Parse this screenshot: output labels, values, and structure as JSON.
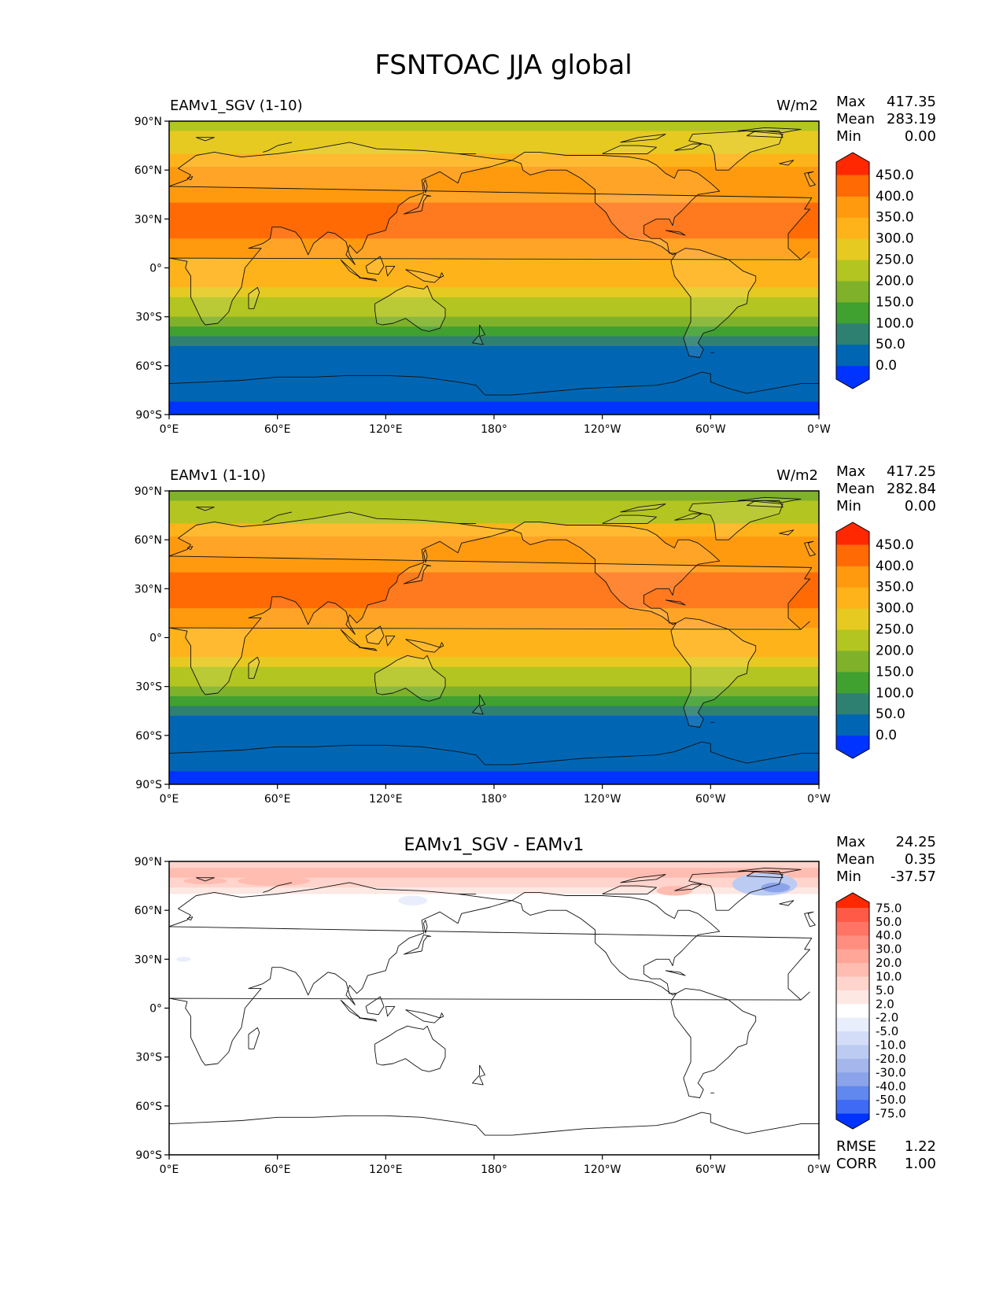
{
  "figure_title": "FSNTOAC JJA global",
  "colors": {
    "abs_levels": [
      "#0033ff",
      "#0066b3",
      "#2e8070",
      "#40a030",
      "#7fb22a",
      "#b3c520",
      "#e6ca22",
      "#ffb31a",
      "#ff9a0f",
      "#ff6a05",
      "#ff2800"
    ],
    "diff_levels": [
      "#0033ff",
      "#3e6af5",
      "#6088ee",
      "#8aa3ea",
      "#a4b6ec",
      "#bccbf2",
      "#d3ddf7",
      "#e8eefb",
      "#ffffff",
      "#fde8e4",
      "#ffd4cc",
      "#ffbcb0",
      "#ffa698",
      "#ff8e80",
      "#ff7464",
      "#ff5a48",
      "#ff2800"
    ]
  },
  "chart_data": [
    {
      "type": "heatmap",
      "name": "test",
      "title_left": "EAMv1_SGV (1-10)",
      "title_right": "W/m2",
      "xlabel": "",
      "ylabel": "",
      "xlim": [
        0,
        360
      ],
      "ylim": [
        -90,
        90
      ],
      "xticks": [
        "0°E",
        "60°E",
        "120°E",
        "180°",
        "120°W",
        "60°W",
        "0°W"
      ],
      "yticks": [
        "90°N",
        "60°N",
        "30°N",
        "0°",
        "30°S",
        "60°S",
        "90°S"
      ],
      "stats": [
        {
          "label": "Max",
          "value": "417.35"
        },
        {
          "label": "Mean",
          "value": "283.19"
        },
        {
          "label": "Min",
          "value": "0.00"
        }
      ],
      "colorbar_levels": [
        "450.0",
        "400.0",
        "350.0",
        "300.0",
        "250.0",
        "200.0",
        "150.0",
        "100.0",
        "50.0",
        "0.0"
      ],
      "zonal_bands_lat_start_to_end_level": [
        [
          90,
          84,
          5
        ],
        [
          84,
          70,
          6
        ],
        [
          70,
          62,
          7
        ],
        [
          62,
          50,
          8
        ],
        [
          50,
          40,
          8
        ],
        [
          40,
          18,
          9
        ],
        [
          18,
          6,
          8
        ],
        [
          6,
          -6,
          7
        ],
        [
          -6,
          -12,
          7
        ],
        [
          -12,
          -18,
          6
        ],
        [
          -18,
          -24,
          5
        ],
        [
          -24,
          -30,
          5
        ],
        [
          -30,
          -36,
          4
        ],
        [
          -36,
          -42,
          3
        ],
        [
          -42,
          -48,
          2
        ],
        [
          -48,
          -54,
          1
        ],
        [
          -54,
          -82,
          1
        ],
        [
          -82,
          -90,
          0
        ]
      ]
    },
    {
      "type": "heatmap",
      "name": "reference",
      "title_left": "EAMv1 (1-10)",
      "title_right": "W/m2",
      "xlabel": "",
      "ylabel": "",
      "xlim": [
        0,
        360
      ],
      "ylim": [
        -90,
        90
      ],
      "xticks": [
        "0°E",
        "60°E",
        "120°E",
        "180°",
        "120°W",
        "60°W",
        "0°W"
      ],
      "yticks": [
        "90°N",
        "60°N",
        "30°N",
        "0°",
        "30°S",
        "60°S",
        "90°S"
      ],
      "stats": [
        {
          "label": "Max",
          "value": "417.25"
        },
        {
          "label": "Mean",
          "value": "282.84"
        },
        {
          "label": "Min",
          "value": "0.00"
        }
      ],
      "colorbar_levels": [
        "450.0",
        "400.0",
        "350.0",
        "300.0",
        "250.0",
        "200.0",
        "150.0",
        "100.0",
        "50.0",
        "0.0"
      ],
      "zonal_bands_lat_start_to_end_level": [
        [
          90,
          84,
          4
        ],
        [
          84,
          70,
          5
        ],
        [
          70,
          62,
          7
        ],
        [
          62,
          50,
          8
        ],
        [
          50,
          40,
          8
        ],
        [
          40,
          18,
          9
        ],
        [
          18,
          6,
          8
        ],
        [
          6,
          -6,
          7
        ],
        [
          -6,
          -12,
          7
        ],
        [
          -12,
          -18,
          6
        ],
        [
          -18,
          -24,
          5
        ],
        [
          -24,
          -30,
          5
        ],
        [
          -30,
          -36,
          4
        ],
        [
          -36,
          -42,
          3
        ],
        [
          -42,
          -48,
          2
        ],
        [
          -48,
          -54,
          1
        ],
        [
          -54,
          -82,
          1
        ],
        [
          -82,
          -90,
          0
        ]
      ]
    },
    {
      "type": "heatmap",
      "name": "difference",
      "title": "EAMv1_SGV - EAMv1",
      "xlabel": "",
      "ylabel": "",
      "xlim": [
        0,
        360
      ],
      "ylim": [
        -90,
        90
      ],
      "xticks": [
        "0°E",
        "60°E",
        "120°E",
        "180°",
        "120°W",
        "60°W",
        "0°W"
      ],
      "yticks": [
        "90°N",
        "60°N",
        "30°N",
        "0°",
        "30°S",
        "60°S",
        "90°S"
      ],
      "stats": [
        {
          "label": "Max",
          "value": "24.25"
        },
        {
          "label": "Mean",
          "value": "0.35"
        },
        {
          "label": "Min",
          "value": "-37.57"
        }
      ],
      "bottom_stats": [
        {
          "label": "RMSE",
          "value": "1.22"
        },
        {
          "label": "CORR",
          "value": "1.00"
        }
      ],
      "colorbar_levels": [
        "75.0",
        "50.0",
        "40.0",
        "30.0",
        "20.0",
        "10.0",
        "5.0",
        "2.0",
        "-2.0",
        "-5.0",
        "-10.0",
        "-20.0",
        "-30.0",
        "-40.0",
        "-50.0",
        "-75.0"
      ],
      "zonal_bands_lat_start_to_end_level": [
        [
          90,
          86,
          10
        ],
        [
          86,
          80,
          11
        ],
        [
          80,
          74,
          10
        ],
        [
          74,
          70,
          9
        ],
        [
          70,
          -90,
          8
        ]
      ]
    }
  ]
}
